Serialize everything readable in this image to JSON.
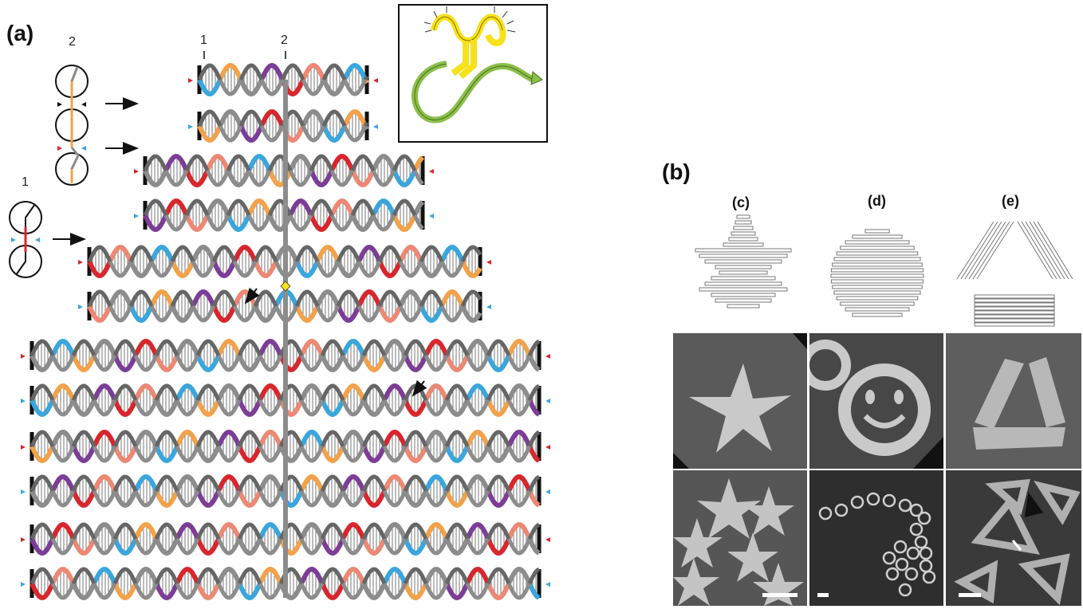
{
  "panel_a": {
    "label": "(a)",
    "schematic_labels": [
      "2",
      "1"
    ],
    "column_labels": [
      "1",
      "2"
    ],
    "strand_colors": {
      "blue": "#3aa6dc",
      "orange": "#f2a24a",
      "gray": "#8c8c8c",
      "purple": "#7c3d96",
      "red": "#d8262d",
      "salmon": "#ec8874",
      "green": "#8bbf4a",
      "black": "#111111"
    },
    "inset": {
      "colors": [
        "#f6e21a",
        "#8bbf4a"
      ]
    }
  },
  "panel_b": {
    "label": "(b)",
    "shapes": [
      {
        "label": "(c)",
        "name": "star"
      },
      {
        "label": "(d)",
        "name": "smiley"
      },
      {
        "label": "(e)",
        "name": "triangle"
      }
    ]
  }
}
